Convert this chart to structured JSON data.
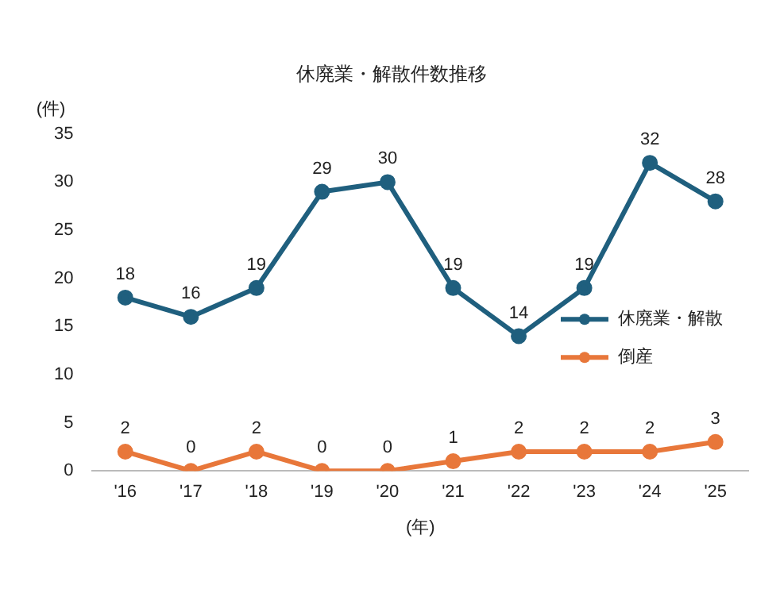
{
  "chart_data": {
    "type": "line",
    "title": "休廃業・解散件数推移",
    "ylabel": "(件)",
    "xlabel": "(年)",
    "categories": [
      "'16",
      "'17",
      "'18",
      "'19",
      "'20",
      "'21",
      "'22",
      "'23",
      "'24",
      "'25"
    ],
    "series": [
      {
        "name": "休廃業・解散",
        "color": "#1f5f7e",
        "values": [
          18,
          16,
          19,
          29,
          30,
          19,
          14,
          19,
          32,
          28
        ]
      },
      {
        "name": "倒産",
        "color": "#e8773a",
        "values": [
          2,
          0,
          2,
          0,
          0,
          1,
          2,
          2,
          2,
          3
        ]
      }
    ],
    "ylim": [
      0,
      35
    ],
    "yticks": [
      0,
      5,
      10,
      15,
      20,
      25,
      30,
      35
    ],
    "grid": false,
    "legend": "right",
    "marker": "circle",
    "line_style": "solid",
    "data_labels": true
  }
}
